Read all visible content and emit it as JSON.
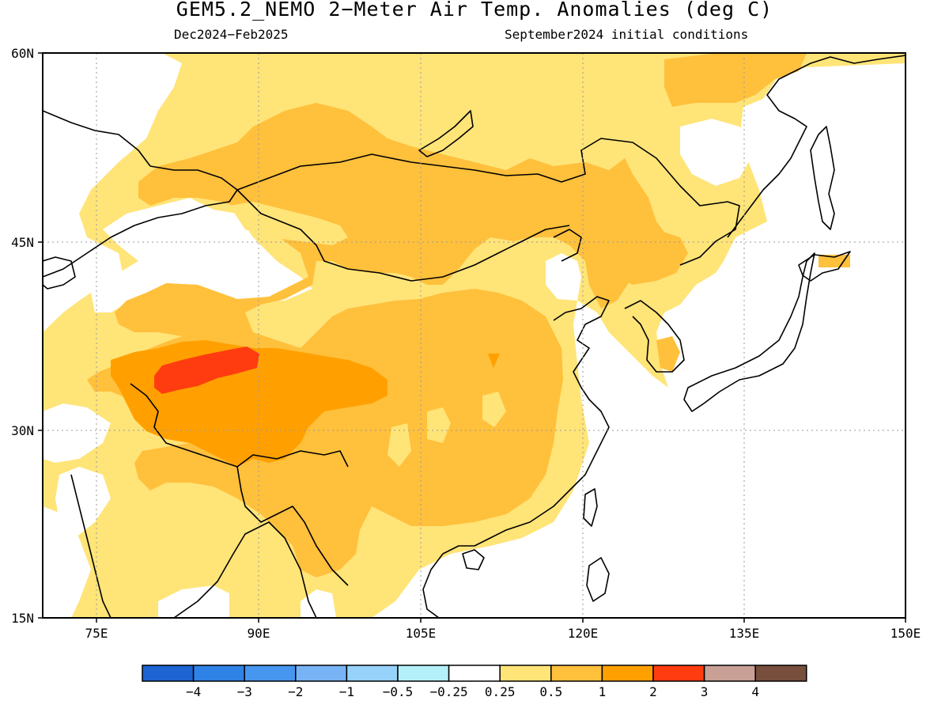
{
  "title": "GEM5.2_NEMO 2−Meter Air Temp. Anomalies (deg C)",
  "period": "Dec2024−Feb2025",
  "initial_conditions": "September2024 initial conditions",
  "axes": {
    "lat_labels": [
      "60N",
      "45N",
      "30N",
      "15N"
    ],
    "lon_labels": [
      "75E",
      "90E",
      "105E",
      "120E",
      "135E",
      "150E"
    ],
    "lat_range": [
      15,
      60
    ],
    "lon_range": [
      70,
      150
    ]
  },
  "colorbar": {
    "labels": [
      "−4",
      "−3",
      "−2",
      "−1",
      "−0.5",
      "−0.25",
      "0.25",
      "0.5",
      "1",
      "2",
      "3",
      "4"
    ],
    "colors": [
      "#1e64d2",
      "#2f82e6",
      "#4696f0",
      "#78b4f5",
      "#96d2fa",
      "#b4f0fa",
      "#ffffff",
      "#ffe478",
      "#ffc03c",
      "#ffa000",
      "#ff3c10",
      "#c8a096",
      "#784e3c"
    ]
  },
  "anomaly_colors": {
    "light_yellow": "#ffe478",
    "light_orange": "#ffc03c",
    "orange": "#ffa000",
    "red": "#ff3c10"
  }
}
